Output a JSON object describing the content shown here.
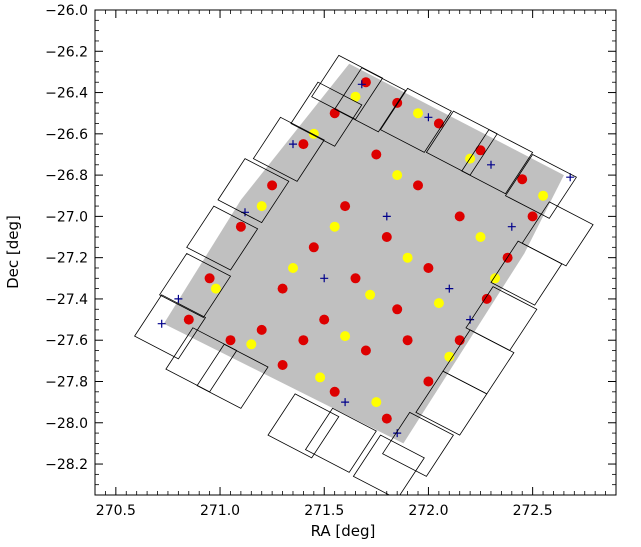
{
  "chart_data": {
    "type": "scatter",
    "title": "",
    "xlabel": "RA [deg]",
    "ylabel": "Dec [deg]",
    "xlim": [
      270.4,
      272.9
    ],
    "ylim": [
      -28.35,
      -26.0
    ],
    "x_ticks": [
      270.5,
      271.0,
      271.5,
      272.0,
      272.5
    ],
    "x_tick_labels": [
      "270.5",
      "271.0",
      "271.5",
      "272.0",
      "272.5"
    ],
    "y_ticks": [
      -26.0,
      -26.2,
      -26.4,
      -26.6,
      -26.8,
      -27.0,
      -27.2,
      -27.4,
      -27.6,
      -27.8,
      -28.0,
      -28.2
    ],
    "y_tick_labels": [
      "−26.0",
      "−26.2",
      "−26.4",
      "−26.6",
      "−26.8",
      "−27.0",
      "−27.2",
      "−27.4",
      "−27.6",
      "−27.8",
      "−28.0",
      "−28.2"
    ],
    "grid": false,
    "legend": "none",
    "colors": {
      "footprint": "#c0c0c0",
      "red_points": "#dd0000",
      "yellow_points": "#ffff00",
      "plus_markers": "#00008b",
      "tiles": "#000000"
    },
    "survey_footprint": [
      [
        271.62,
        -26.26
      ],
      [
        272.65,
        -26.8
      ],
      [
        272.46,
        -27.18
      ],
      [
        271.88,
        -28.1
      ],
      [
        270.73,
        -27.52
      ],
      [
        271.1,
        -26.92
      ]
    ],
    "tiles": [
      [
        [
          271.57,
          -26.22
        ],
        [
          271.78,
          -26.33
        ],
        [
          271.65,
          -26.53
        ],
        [
          271.44,
          -26.42
        ]
      ],
      [
        [
          271.68,
          -26.28
        ],
        [
          271.89,
          -26.39
        ],
        [
          271.76,
          -26.59
        ],
        [
          271.55,
          -26.48
        ]
      ],
      [
        [
          271.9,
          -26.38
        ],
        [
          272.11,
          -26.49
        ],
        [
          271.98,
          -26.69
        ],
        [
          271.77,
          -26.58
        ]
      ],
      [
        [
          272.12,
          -26.49
        ],
        [
          272.33,
          -26.6
        ],
        [
          272.2,
          -26.8
        ],
        [
          271.99,
          -26.69
        ]
      ],
      [
        [
          272.29,
          -26.58
        ],
        [
          272.5,
          -26.69
        ],
        [
          272.37,
          -26.89
        ],
        [
          272.16,
          -26.78
        ]
      ],
      [
        [
          272.5,
          -26.7
        ],
        [
          272.71,
          -26.81
        ],
        [
          272.58,
          -27.01
        ],
        [
          272.37,
          -26.9
        ]
      ],
      [
        [
          271.47,
          -26.35
        ],
        [
          271.68,
          -26.46
        ],
        [
          271.55,
          -26.66
        ],
        [
          271.34,
          -26.55
        ]
      ],
      [
        [
          271.29,
          -26.52
        ],
        [
          271.5,
          -26.63
        ],
        [
          271.37,
          -26.83
        ],
        [
          271.16,
          -26.72
        ]
      ],
      [
        [
          271.12,
          -26.72
        ],
        [
          271.33,
          -26.83
        ],
        [
          271.2,
          -27.03
        ],
        [
          270.99,
          -26.92
        ]
      ],
      [
        [
          270.97,
          -26.95
        ],
        [
          271.18,
          -27.06
        ],
        [
          271.05,
          -27.26
        ],
        [
          270.84,
          -27.15
        ]
      ],
      [
        [
          270.84,
          -27.18
        ],
        [
          271.05,
          -27.29
        ],
        [
          270.92,
          -27.49
        ],
        [
          270.71,
          -27.38
        ]
      ],
      [
        [
          270.72,
          -27.38
        ],
        [
          270.93,
          -27.49
        ],
        [
          270.8,
          -27.69
        ],
        [
          270.59,
          -27.58
        ]
      ],
      [
        [
          270.87,
          -27.54
        ],
        [
          271.08,
          -27.65
        ],
        [
          270.95,
          -27.85
        ],
        [
          270.74,
          -27.74
        ]
      ],
      [
        [
          271.02,
          -27.62
        ],
        [
          271.23,
          -27.73
        ],
        [
          271.1,
          -27.93
        ],
        [
          270.89,
          -27.82
        ]
      ],
      [
        [
          271.36,
          -27.86
        ],
        [
          271.57,
          -27.97
        ],
        [
          271.44,
          -28.17
        ],
        [
          271.23,
          -28.06
        ]
      ],
      [
        [
          271.54,
          -27.93
        ],
        [
          271.75,
          -28.04
        ],
        [
          271.62,
          -28.24
        ],
        [
          271.41,
          -28.13
        ]
      ],
      [
        [
          271.77,
          -28.06
        ],
        [
          271.98,
          -28.17
        ],
        [
          271.85,
          -28.37
        ],
        [
          271.64,
          -28.26
        ]
      ],
      [
        [
          271.91,
          -27.95
        ],
        [
          272.12,
          -28.06
        ],
        [
          271.99,
          -28.26
        ],
        [
          271.78,
          -28.15
        ]
      ],
      [
        [
          272.07,
          -27.75
        ],
        [
          272.28,
          -27.86
        ],
        [
          272.15,
          -28.06
        ],
        [
          271.94,
          -27.95
        ]
      ],
      [
        [
          272.2,
          -27.55
        ],
        [
          272.41,
          -27.66
        ],
        [
          272.28,
          -27.86
        ],
        [
          272.07,
          -27.75
        ]
      ],
      [
        [
          272.31,
          -27.34
        ],
        [
          272.52,
          -27.45
        ],
        [
          272.39,
          -27.65
        ],
        [
          272.18,
          -27.54
        ]
      ],
      [
        [
          272.43,
          -27.12
        ],
        [
          272.64,
          -27.23
        ],
        [
          272.51,
          -27.43
        ],
        [
          272.3,
          -27.32
        ]
      ],
      [
        [
          272.58,
          -26.93
        ],
        [
          272.79,
          -27.04
        ],
        [
          272.66,
          -27.24
        ],
        [
          272.45,
          -27.13
        ]
      ]
    ],
    "series": [
      {
        "marker": "circle",
        "color": "#dd0000",
        "points": [
          [
            271.7,
            -26.35
          ],
          [
            271.85,
            -26.45
          ],
          [
            272.05,
            -26.55
          ],
          [
            272.25,
            -26.68
          ],
          [
            272.45,
            -26.82
          ],
          [
            271.55,
            -26.5
          ],
          [
            271.4,
            -26.65
          ],
          [
            271.25,
            -26.85
          ],
          [
            271.1,
            -27.05
          ],
          [
            270.95,
            -27.3
          ],
          [
            270.85,
            -27.5
          ],
          [
            271.05,
            -27.6
          ],
          [
            271.3,
            -27.72
          ],
          [
            271.55,
            -27.85
          ],
          [
            271.8,
            -27.98
          ],
          [
            272.0,
            -27.8
          ],
          [
            272.15,
            -27.6
          ],
          [
            272.28,
            -27.4
          ],
          [
            272.38,
            -27.2
          ],
          [
            272.5,
            -27.0
          ],
          [
            271.75,
            -26.7
          ],
          [
            271.95,
            -26.85
          ],
          [
            272.15,
            -27.0
          ],
          [
            271.6,
            -26.95
          ],
          [
            271.8,
            -27.1
          ],
          [
            272.0,
            -27.25
          ],
          [
            271.45,
            -27.15
          ],
          [
            271.65,
            -27.3
          ],
          [
            271.85,
            -27.45
          ],
          [
            271.3,
            -27.35
          ],
          [
            271.5,
            -27.5
          ],
          [
            271.7,
            -27.65
          ],
          [
            271.2,
            -27.55
          ],
          [
            271.4,
            -27.6
          ],
          [
            271.9,
            -27.6
          ]
        ]
      },
      {
        "marker": "circle",
        "color": "#ffff00",
        "points": [
          [
            271.65,
            -26.42
          ],
          [
            271.95,
            -26.5
          ],
          [
            272.2,
            -26.72
          ],
          [
            271.45,
            -26.6
          ],
          [
            271.2,
            -26.95
          ],
          [
            270.98,
            -27.35
          ],
          [
            271.15,
            -27.62
          ],
          [
            271.48,
            -27.78
          ],
          [
            271.75,
            -27.9
          ],
          [
            272.1,
            -27.68
          ],
          [
            272.32,
            -27.3
          ],
          [
            272.55,
            -26.9
          ],
          [
            271.85,
            -26.8
          ],
          [
            271.55,
            -27.05
          ],
          [
            271.72,
            -27.38
          ],
          [
            272.05,
            -27.42
          ],
          [
            271.35,
            -27.25
          ],
          [
            271.6,
            -27.58
          ],
          [
            271.9,
            -27.2
          ],
          [
            272.25,
            -27.1
          ]
        ]
      },
      {
        "marker": "plus",
        "color": "#00008b",
        "points": [
          [
            271.68,
            -26.36
          ],
          [
            272.0,
            -26.52
          ],
          [
            272.3,
            -26.75
          ],
          [
            272.68,
            -26.81
          ],
          [
            271.35,
            -26.65
          ],
          [
            271.12,
            -26.98
          ],
          [
            270.72,
            -27.52
          ],
          [
            270.8,
            -27.4
          ],
          [
            271.6,
            -27.9
          ],
          [
            271.85,
            -28.05
          ],
          [
            272.2,
            -27.5
          ],
          [
            272.4,
            -27.05
          ],
          [
            271.8,
            -27.0
          ],
          [
            271.5,
            -27.3
          ],
          [
            272.1,
            -27.35
          ]
        ]
      }
    ]
  }
}
